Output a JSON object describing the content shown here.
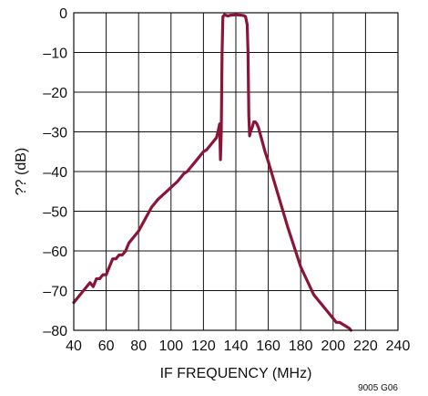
{
  "chart_data": {
    "type": "line",
    "title": "",
    "xlabel": "IF FREQUENCY (MHz)",
    "ylabel": "?? (dB)",
    "xlim": [
      40,
      240
    ],
    "ylim": [
      -80,
      0
    ],
    "x_ticks": [
      40,
      60,
      80,
      100,
      120,
      140,
      160,
      180,
      200,
      220,
      240
    ],
    "y_ticks": [
      0,
      -10,
      -20,
      -30,
      -40,
      -50,
      -60,
      -70,
      -80
    ],
    "x_tick_labels": [
      "40",
      "60",
      "80",
      "100",
      "120",
      "140",
      "160",
      "180",
      "200",
      "220",
      "240"
    ],
    "y_tick_labels": [
      "0",
      "–10",
      "–20",
      "–30",
      "–40",
      "–50",
      "–60",
      "–70",
      "–80"
    ],
    "grid": true,
    "legend": "none",
    "line_color": "#8b1538",
    "series": [
      {
        "x": [
          40,
          44,
          48,
          50,
          52,
          54,
          56,
          58,
          60,
          62,
          64,
          66,
          68,
          70,
          72,
          74,
          76,
          78,
          80,
          84,
          88,
          92,
          96,
          100,
          104,
          108,
          110,
          112,
          114,
          116,
          118,
          120,
          122,
          124,
          126,
          128,
          129,
          130,
          130.5,
          131,
          131.5,
          132,
          133,
          135,
          137,
          140,
          143,
          145,
          146,
          147,
          147.5,
          148,
          148.5,
          149,
          150,
          151,
          152,
          153,
          154,
          156,
          158,
          160,
          164,
          168,
          172,
          176,
          180,
          184,
          188,
          192,
          196,
          200,
          202,
          204,
          206,
          208,
          210,
          211
        ],
        "y": [
          -73,
          -71,
          -69,
          -68,
          -69,
          -67,
          -67,
          -66,
          -66,
          -64,
          -62,
          -62,
          -61,
          -61,
          -60,
          -58,
          -57,
          -56,
          -55,
          -52,
          -49,
          -47,
          -45.5,
          -44,
          -42.5,
          -40.5,
          -40,
          -39,
          -38,
          -37,
          -36,
          -35,
          -34.5,
          -33.5,
          -32.5,
          -31.5,
          -30,
          -28,
          -37,
          -30,
          -10,
          -1,
          -0.5,
          -0.8,
          -0.6,
          -0.5,
          -0.6,
          -0.7,
          -1,
          -3,
          -10,
          -26,
          -31,
          -30,
          -29,
          -27.5,
          -27.5,
          -28,
          -29,
          -32,
          -35,
          -37.5,
          -43,
          -48.5,
          -54,
          -59,
          -64,
          -67.5,
          -71,
          -73,
          -75,
          -77,
          -78,
          -78,
          -78.5,
          -79,
          -79.5,
          -80
        ]
      }
    ],
    "figure_id": "9005 G06"
  }
}
